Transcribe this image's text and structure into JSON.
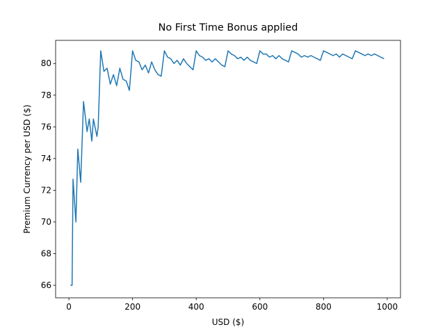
{
  "chart_data": {
    "type": "line",
    "title": "No First Time Bonus applied",
    "x_label": "USD ($)",
    "y_label": "Premium Currency per USD ($)",
    "x": [
      5,
      10,
      13,
      22,
      28,
      37,
      46,
      57,
      64,
      72,
      77,
      88,
      92,
      100,
      110,
      120,
      130,
      140,
      150,
      160,
      170,
      180,
      190,
      200,
      210,
      220,
      230,
      240,
      250,
      260,
      270,
      280,
      290,
      300,
      310,
      320,
      330,
      340,
      350,
      360,
      370,
      380,
      390,
      400,
      410,
      420,
      430,
      440,
      450,
      460,
      470,
      480,
      490,
      500,
      510,
      520,
      530,
      540,
      550,
      560,
      570,
      580,
      590,
      600,
      610,
      620,
      630,
      640,
      650,
      660,
      670,
      680,
      690,
      700,
      710,
      720,
      730,
      740,
      750,
      760,
      770,
      780,
      790,
      800,
      810,
      820,
      830,
      840,
      850,
      860,
      870,
      880,
      890,
      900,
      910,
      920,
      930,
      940,
      950,
      960,
      970,
      980,
      990
    ],
    "series": [
      {
        "name": "Premium Currency per USD",
        "color": "#1f77b4",
        "values": [
          66,
          66,
          72.7,
          70,
          74.6,
          72.5,
          77.6,
          75.7,
          76.5,
          75.1,
          76.5,
          75.4,
          76,
          80.8,
          79.5,
          79.7,
          78.7,
          79.3,
          78.6,
          79.7,
          79.0,
          78.9,
          78.3,
          80.8,
          80.2,
          80.1,
          79.6,
          79.9,
          79.4,
          80.1,
          79.6,
          79.3,
          79.2,
          80.8,
          80.4,
          80.3,
          80.0,
          80.2,
          79.9,
          80.3,
          80.0,
          79.8,
          79.6,
          80.8,
          80.5,
          80.4,
          80.2,
          80.3,
          80.1,
          80.3,
          80.1,
          79.9,
          79.8,
          80.8,
          80.6,
          80.5,
          80.3,
          80.4,
          80.2,
          80.4,
          80.2,
          80.1,
          80.0,
          80.8,
          80.6,
          80.6,
          80.4,
          80.5,
          80.3,
          80.5,
          80.3,
          80.2,
          80.1,
          80.8,
          80.7,
          80.6,
          80.4,
          80.5,
          80.4,
          80.5,
          80.4,
          80.3,
          80.2,
          80.8,
          80.7,
          80.6,
          80.5,
          80.6,
          80.4,
          80.6,
          80.5,
          80.4,
          80.3,
          80.8,
          80.7,
          80.6,
          80.5,
          80.6,
          80.5,
          80.6,
          80.5,
          80.4,
          80.3
        ]
      }
    ],
    "xlim": [
      -41.7,
      1041.7
    ],
    "ylim": [
      65.21,
      81.46
    ],
    "xticks": [
      0,
      200,
      400,
      600,
      800,
      1000
    ],
    "yticks": [
      66,
      68,
      70,
      72,
      74,
      76,
      78,
      80
    ]
  }
}
